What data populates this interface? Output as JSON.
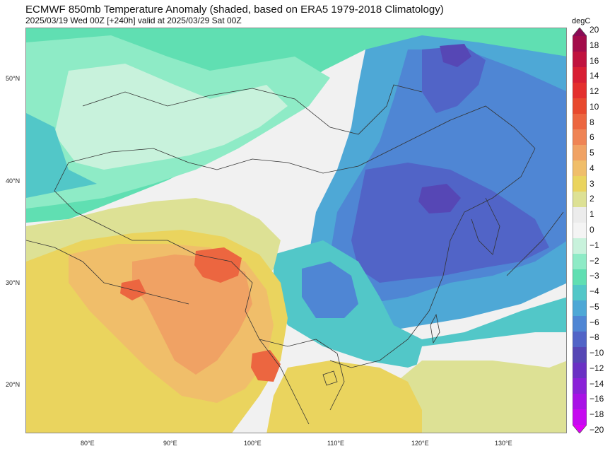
{
  "title": "ECMWF 850mb Temperature Anomaly (shaded, based on ERA5 1979-2018 Climatology)",
  "subtitle": "2025/03/19 Wed 00Z [+240h] valid at 2025/03/29 Sat 00Z",
  "colorbar": {
    "unit": "degC",
    "ticks": [
      "20",
      "18",
      "16",
      "14",
      "12",
      "10",
      "8",
      "6",
      "5",
      "4",
      "3",
      "2",
      "1",
      "0",
      "−1",
      "−2",
      "−3",
      "−4",
      "−5",
      "−6",
      "−8",
      "−10",
      "−12",
      "−14",
      "−16",
      "−18",
      "−20"
    ],
    "colors": [
      "#8b0a55",
      "#a30c4a",
      "#c0123e",
      "#d81e33",
      "#e42f2d",
      "#e8492e",
      "#ec6640",
      "#ef8455",
      "#f0a264",
      "#f0be6a",
      "#ead45e",
      "#dde195",
      "#ececec",
      "#f4f4f4",
      "#c8f2dc",
      "#8eebc6",
      "#60dfb2",
      "#52c7c8",
      "#4ea8d6",
      "#4f86d4",
      "#5164c7",
      "#5647b5",
      "#6a31c4",
      "#8a22d8",
      "#a812e6",
      "#c60af0",
      "#e000f7"
    ]
  },
  "map": {
    "lat_labels": [
      "50°N",
      "40°N",
      "30°N",
      "20°N"
    ],
    "lon_labels": [
      "80°E",
      "90°E",
      "100°E",
      "110°E",
      "120°E",
      "130°E"
    ],
    "anomaly_colors": {
      "cold_strong": "#5164c7",
      "cold_mid": "#4f86d4",
      "cold_light": "#4ea8d6",
      "cyan": "#52c7c8",
      "teal": "#60dfb2",
      "mint": "#8eebc6",
      "pale_mint": "#c8f2dc",
      "neutral": "#f1f1f1",
      "warm_pale": "#dde195",
      "warm_yellow": "#ead45e",
      "warm_orange": "#f0be6a",
      "warm_deep": "#f0a264",
      "hot": "#ec6640",
      "purple": "#5647b5"
    }
  }
}
